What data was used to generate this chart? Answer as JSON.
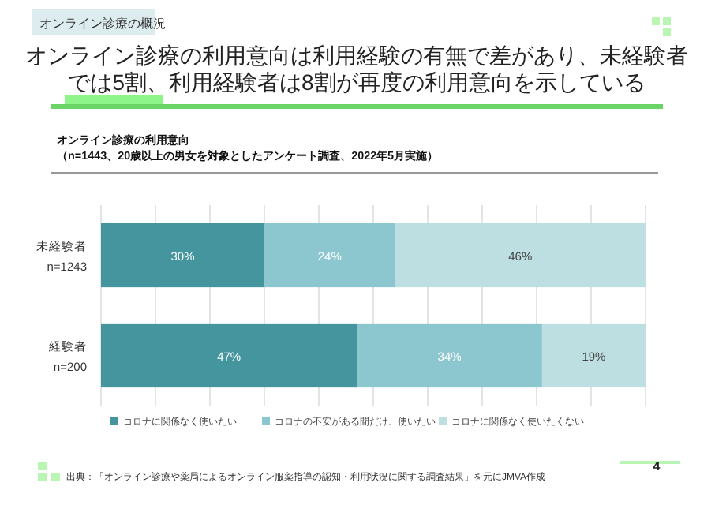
{
  "chart_data": {
    "type": "bar",
    "orientation": "horizontal",
    "stacked": true,
    "title": "オンライン診療の利用意向は利用経験の有無で差があり、未経験者では5割、利用経験者は8割が再度の利用意向を示している",
    "subtitle": "オンライン診療の利用意向",
    "categories": [
      "未経験者\nn=1243",
      "経験者\nn=200"
    ],
    "series": [
      {
        "name": "コロナに関係なく使いたい",
        "color": "#45959e",
        "values": [
          30,
          47
        ],
        "value_labels": [
          "30%",
          "47%"
        ]
      },
      {
        "name": "コロナの不安がある間だけ、使いたい",
        "color": "#8cc6ce",
        "values": [
          24,
          34
        ],
        "value_labels": [
          "24%",
          "34%"
        ]
      },
      {
        "name": "コロナに関係なく使いたくない",
        "color": "#bddfe2",
        "values": [
          46,
          19
        ],
        "value_labels": [
          "46%",
          "19%"
        ]
      }
    ],
    "tick_labels": "y",
    "grid": "x",
    "legend": "bottom",
    "annotations": [
      "オンライン診療の概況",
      "（n=1443、20歳以上の男女を対象としたアンケート調査、2022年5月実施）",
      "出典：「オンライン診療や薬局によるオンライン服薬指導の認知・利用状況に関する調査結果」を元にJMVA作成",
      "4"
    ]
  }
}
